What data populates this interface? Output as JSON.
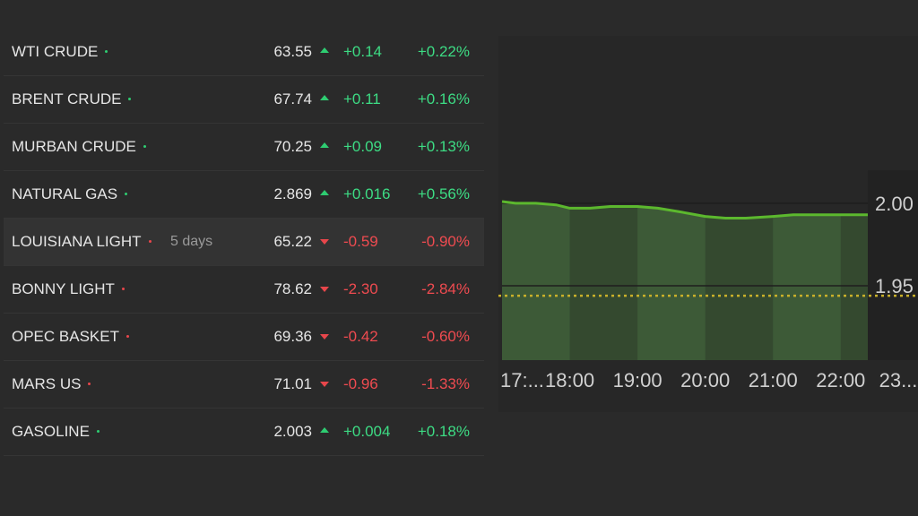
{
  "table": {
    "rows": [
      {
        "name": "WTI CRUDE",
        "dir": "up",
        "note": "",
        "price": "63.55",
        "change": "+0.14",
        "pct": "+0.22%"
      },
      {
        "name": "BRENT CRUDE",
        "dir": "up",
        "note": "",
        "price": "67.74",
        "change": "+0.11",
        "pct": "+0.16%"
      },
      {
        "name": "MURBAN CRUDE",
        "dir": "up",
        "note": "",
        "price": "70.25",
        "change": "+0.09",
        "pct": "+0.13%"
      },
      {
        "name": "NATURAL GAS",
        "dir": "up",
        "note": "",
        "price": "2.869",
        "change": "+0.016",
        "pct": "+0.56%"
      },
      {
        "name": "LOUISIANA LIGHT",
        "dir": "down",
        "note": "5 days",
        "price": "65.22",
        "change": "-0.59",
        "pct": "-0.90%"
      },
      {
        "name": "BONNY LIGHT",
        "dir": "down",
        "note": "",
        "price": "78.62",
        "change": "-2.30",
        "pct": "-2.84%"
      },
      {
        "name": "OPEC BASKET",
        "dir": "down",
        "note": "",
        "price": "69.36",
        "change": "-0.42",
        "pct": "-0.60%"
      },
      {
        "name": "MARS US",
        "dir": "down",
        "note": "",
        "price": "71.01",
        "change": "-0.96",
        "pct": "-1.33%"
      },
      {
        "name": "GASOLINE",
        "dir": "up",
        "note": "",
        "price": "2.003",
        "change": "+0.004",
        "pct": "+0.18%"
      }
    ]
  },
  "chart_data": {
    "type": "area",
    "x_tick_labels": [
      "17:...",
      "18:00",
      "19:00",
      "20:00",
      "21:00",
      "22:00",
      "23..."
    ],
    "y_tick_labels": [
      "2.00",
      "1.95"
    ],
    "y_ticks": [
      2.0,
      1.95
    ],
    "ylim": [
      1.905,
      2.02
    ],
    "xlim": [
      17.0,
      22.4
    ],
    "x": [
      17.0,
      17.2,
      17.5,
      17.8,
      18.0,
      18.3,
      18.6,
      19.0,
      19.3,
      19.6,
      20.0,
      20.3,
      20.6,
      21.0,
      21.3,
      21.6,
      22.0,
      22.4
    ],
    "values": [
      2.001,
      2.0,
      2.0,
      1.999,
      1.997,
      1.997,
      1.998,
      1.998,
      1.997,
      1.995,
      1.992,
      1.991,
      1.991,
      1.992,
      1.993,
      1.993,
      1.993,
      1.993
    ],
    "reference_line": 1.944,
    "colors": {
      "line": "#5cb82e",
      "fill": "#3d5a37",
      "fill_alt": "#34492f",
      "grid": "#1e1e1e",
      "ref": "#c9b02a",
      "label": "#d0d0d0"
    }
  }
}
